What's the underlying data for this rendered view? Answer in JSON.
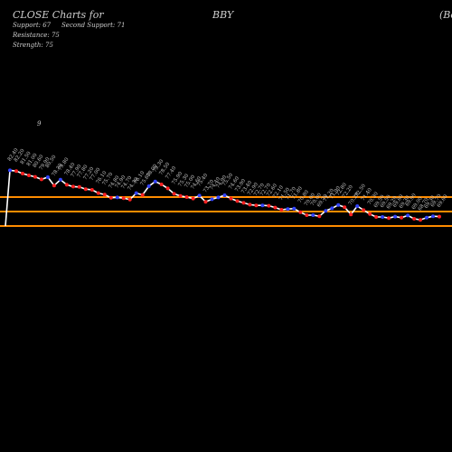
{
  "header": {
    "title": "CLOSE Charts for",
    "symbol": "BBY",
    "name_fragment": "(Be",
    "support_line": "Support: 67",
    "second_support_line": "Second Support: 71",
    "resistance_line": "Resistance: 75",
    "strength_line": "Strength: 75"
  },
  "colors": {
    "background": "#000000",
    "price_line": "#ffffff",
    "up_marker": "#3344ff",
    "down_marker": "#ff2222",
    "level_line": "#ff8c00",
    "text": "#cccccc"
  },
  "chart_data": {
    "type": "line",
    "title": "CLOSE Charts for BBY",
    "y_axis_shown": false,
    "grid": false,
    "ylim": [
      40,
      90
    ],
    "levels": [
      {
        "name": "Resistance",
        "value": 75
      },
      {
        "name": "Second Support",
        "value": 71
      },
      {
        "name": "Support",
        "value": 67
      }
    ],
    "annotation_peak": "9",
    "series": [
      {
        "values": [
          67,
          82.4,
          82.2,
          81.5,
          81.0,
          80.6,
          79.9,
          80.5,
          78.2,
          79.8,
          78.4,
          77.9,
          77.8,
          77.2,
          77.0,
          76.1,
          75.7,
          74.8,
          74.9,
          74.7,
          74.3,
          76.1,
          75.6,
          78.0,
          79.3,
          78.5,
          77.4,
          75.9,
          75.3,
          75.0,
          74.6,
          75.4,
          73.7,
          74.4,
          74.9,
          75.5,
          74.6,
          73.9,
          73.4,
          72.9,
          72.7,
          72.7,
          72.6,
          72.1,
          71.5,
          71.7,
          71.8,
          70.8,
          70.0,
          70.0,
          69.7,
          71.2,
          71.9,
          72.8,
          72.2,
          70.2,
          72.5,
          71.4,
          70.3,
          69.5,
          69.5,
          69.2,
          69.6,
          69.3,
          69.9,
          69.0,
          68.7,
          69.3,
          69.7,
          69.6
        ]
      }
    ]
  }
}
